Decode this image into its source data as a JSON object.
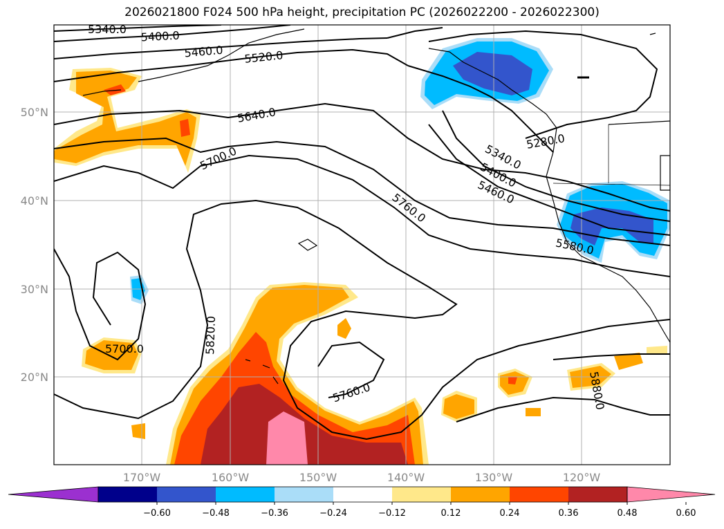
{
  "title": "2026021800 F024 500 hPa height, precipitation PC (2026022200 - 2026022300)",
  "lat_ticks": [
    {
      "label": "50°N",
      "value": 50
    },
    {
      "label": "40°N",
      "value": 40
    },
    {
      "label": "30°N",
      "value": 30
    },
    {
      "label": "20°N",
      "value": 20
    }
  ],
  "lon_ticks": [
    {
      "label": "170°W",
      "value": -170
    },
    {
      "label": "160°W",
      "value": -160
    },
    {
      "label": "150°W",
      "value": -150
    },
    {
      "label": "140°W",
      "value": -140
    },
    {
      "label": "130°W",
      "value": -130
    },
    {
      "label": "120°W",
      "value": -120
    }
  ],
  "contour_labels": [
    "5340.0",
    "5400.0",
    "5460.0",
    "5520.0",
    "5640.0",
    "5700.0",
    "5760.0",
    "5280.0",
    "5340.0",
    "5400.0",
    "5460.0",
    "5580.0",
    "5820.0",
    "5700.0",
    "5760.0",
    "5880.0"
  ],
  "colorbar": {
    "colors": [
      "#9b30d0",
      "#00008b",
      "#3355cc",
      "#00bbff",
      "#aaddf8",
      "#ffffff",
      "#ffe88a",
      "#ffa500",
      "#ff4500",
      "#b22222",
      "#ff88aa"
    ],
    "tick_labels": [
      "−0.60",
      "−0.48",
      "−0.36",
      "−0.24",
      "−0.12",
      "0.12",
      "0.24",
      "0.36",
      "0.48",
      "0.60"
    ]
  }
}
